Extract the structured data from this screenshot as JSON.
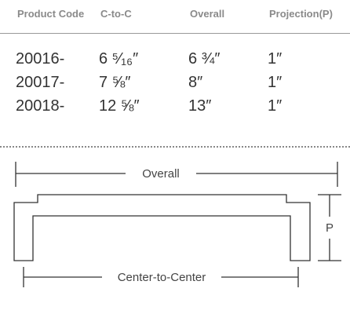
{
  "table": {
    "header": [
      "Product Code",
      "C-to-C",
      "Overall",
      "Projection(P)"
    ],
    "rows": [
      [
        "20016-",
        "6 ⁵⁄₁₆″",
        "6 ¾″",
        "1″"
      ],
      [
        "20017-",
        "7 ⅝″",
        "8″",
        "1″"
      ],
      [
        "20018-",
        "12 ⅝″",
        "13″",
        "1″"
      ]
    ]
  },
  "diagram": {
    "overall_label": "Overall",
    "center_label": "Center-to-Center",
    "projection_label": "P"
  }
}
